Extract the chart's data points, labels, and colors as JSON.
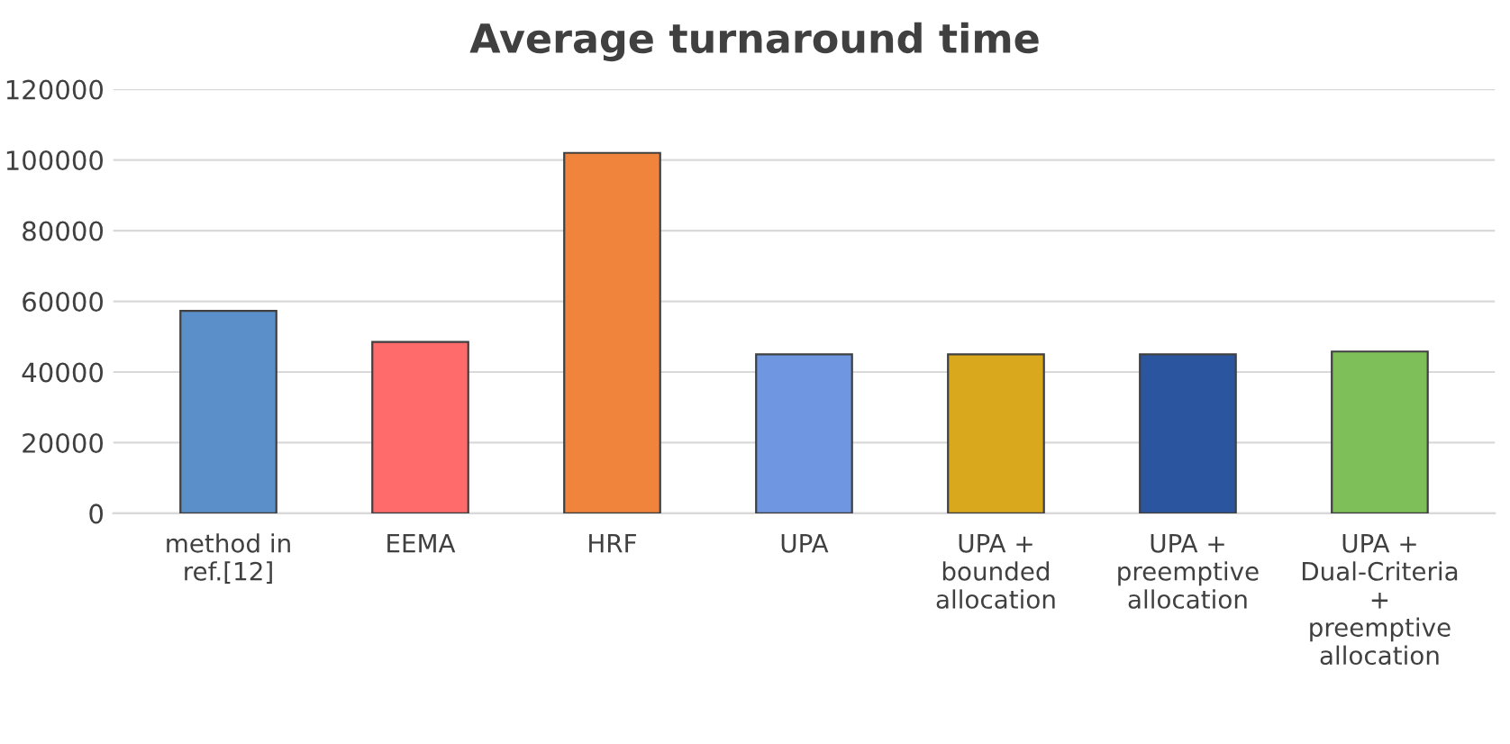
{
  "chart_data": {
    "type": "bar",
    "title": "Average turnaround time",
    "categories": [
      "method in\nref.[12]",
      "EEMA",
      "HRF",
      "UPA",
      "UPA +\nbounded\nallocation",
      "UPA +\npreemptive\nallocation",
      "UPA +\nDual-Criteria\n+\npreemptive\nallocation"
    ],
    "values": [
      57300,
      48500,
      102000,
      45000,
      45000,
      45000,
      45800
    ],
    "colors": [
      "#5b8fc9",
      "#ff6b6b",
      "#f0843c",
      "#6f96e0",
      "#d9a81c",
      "#2c55a0",
      "#7fbf5a"
    ],
    "ylim": [
      0,
      120000
    ],
    "yticks": [
      0,
      20000,
      40000,
      60000,
      80000,
      100000,
      120000
    ],
    "grid": "y"
  }
}
